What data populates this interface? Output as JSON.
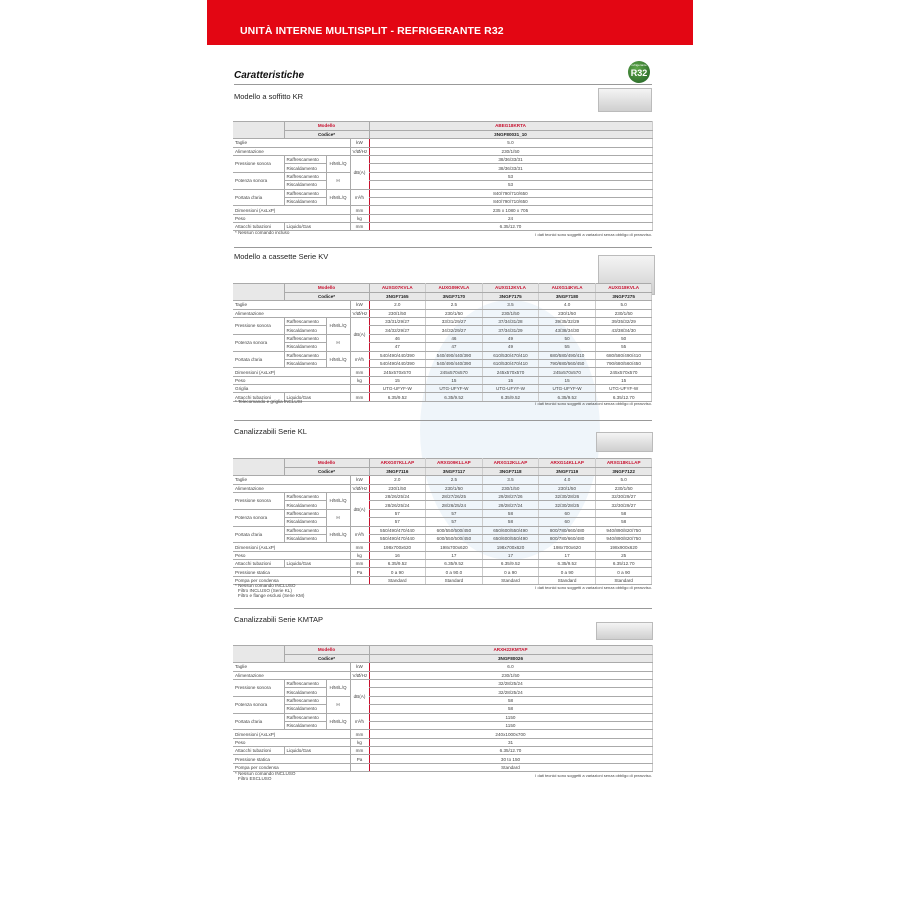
{
  "header": {
    "title": "UNITÀ INTERNE MULTISPLIT - REFRIGERANTE R32"
  },
  "heading": "Caratteristiche",
  "badge": {
    "small": "refrigerante",
    "label": "R32",
    "color": "#2e7d32"
  },
  "disclaimer": "I dati tecnici sono soggetti a variazioni senza obbligo di preavviso.",
  "labels": {
    "modello": "Modello",
    "codice": "Codice*"
  },
  "sections": [
    {
      "title": "Modello a soffitto KR",
      "models": [
        "ABEG18KRTA"
      ],
      "codes": [
        "3NGF80031_10"
      ],
      "rows": [
        {
          "label": "Taglie",
          "unit": "kW",
          "values": [
            "5.0"
          ]
        },
        {
          "label": "Alimentazione",
          "unit": "V/Ø/Hz",
          "values": [
            "230/1/50"
          ]
        },
        {
          "label": "Pressione sonora",
          "mode": "H/M/L/Q",
          "unit": "dB(A)",
          "sub": [
            {
              "label": "Raffrescamento",
              "values": [
                "38/36/33/31"
              ]
            },
            {
              "label": "Riscaldamento",
              "values": [
                "38/36/33/31"
              ]
            }
          ]
        },
        {
          "label": "Potenza sonora",
          "mode": "H",
          "unit": "",
          "sub": [
            {
              "label": "Raffrescamento",
              "values": [
                "53"
              ]
            },
            {
              "label": "Riscaldamento",
              "values": [
                "53"
              ]
            }
          ]
        },
        {
          "label": "Portata d'aria",
          "mode": "H/M/L/Q",
          "unit": "m³/h",
          "sub": [
            {
              "label": "Raffrescamento",
              "values": [
                "840/790/710/650"
              ]
            },
            {
              "label": "Riscaldamento",
              "values": [
                "840/790/710/650"
              ]
            }
          ]
        },
        {
          "label": "Dimensioni (AxLxP)",
          "unit": "mm",
          "values": [
            "235 x 1080 x 705"
          ]
        },
        {
          "label": "Peso",
          "unit": "kg",
          "values": [
            "24"
          ]
        },
        {
          "label": "Attacchi tubazioni",
          "subtype": "Liquido/Gas",
          "unit": "mm",
          "values": [
            "6.35/12.70"
          ]
        }
      ],
      "notes": [
        "* Nessun comando incluso"
      ]
    },
    {
      "title": "Modello a cassette Serie KV",
      "models": [
        "AUXG07KVLA",
        "AUXG09KVLA",
        "AUXG12KVLA",
        "AUXG14KVLA",
        "AUXG18KVLA"
      ],
      "codes": [
        "3NGF7165",
        "3NGF7170",
        "3NGF7175",
        "3NGF7180",
        "3NGF7275"
      ],
      "rows": [
        {
          "label": "Taglie",
          "unit": "kW",
          "values": [
            "2.0",
            "2.5",
            "3.5",
            "4.0",
            "5.0"
          ]
        },
        {
          "label": "Alimentazione",
          "unit": "V/Ø/Hz",
          "values": [
            "230/1/50",
            "230/1/50",
            "230/1/50",
            "230/1/50",
            "230/1/50"
          ]
        },
        {
          "label": "Pressione sonora",
          "mode": "H/M/L/Q",
          "unit": "dB(A)",
          "sub": [
            {
              "label": "Raffrescamento",
              "values": [
                "33/31/29/27",
                "33/31/29/27",
                "37/34/31/28",
                "39/35/32/29",
                "39/35/32/29"
              ]
            },
            {
              "label": "Riscaldamento",
              "values": [
                "34/32/29/27",
                "34/32/29/27",
                "37/34/31/29",
                "43/38/34/30",
                "43/38/34/30"
              ]
            }
          ]
        },
        {
          "label": "Potenza sonora",
          "mode": "H",
          "unit": "",
          "sub": [
            {
              "label": "Raffrescamento",
              "values": [
                "46",
                "46",
                "49",
                "50",
                "50"
              ]
            },
            {
              "label": "Riscaldamento",
              "values": [
                "47",
                "47",
                "49",
                "55",
                "55"
              ]
            }
          ]
        },
        {
          "label": "Portata d'aria",
          "mode": "H/M/L/Q",
          "unit": "m³/h",
          "sub": [
            {
              "label": "Raffrescamento",
              "values": [
                "540/490/440/390",
                "540/490/440/390",
                "610/530/470/410",
                "680/580/490/410",
                "680/580/490/410"
              ]
            },
            {
              "label": "Riscaldamento",
              "values": [
                "540/490/440/390",
                "540/490/440/390",
                "610/530/470/410",
                "790/680/560/450",
                "790/680/560/450"
              ]
            }
          ]
        },
        {
          "label": "Dimensioni (AxLxP)",
          "unit": "mm",
          "values": [
            "245x570x570",
            "245x570x570",
            "245x570x570",
            "245x570x570",
            "245x570x570"
          ]
        },
        {
          "label": "Peso",
          "unit": "kg",
          "values": [
            "15",
            "15",
            "15",
            "15",
            "15"
          ]
        },
        {
          "label": "Griglia",
          "unit": "",
          "values": [
            "UTG-UFYF-W",
            "UTG-UFYF-W",
            "UTG-UFYF-W",
            "UTG-UFYF-W",
            "UTG-UFYF-W"
          ]
        },
        {
          "label": "Attacchi tubazioni",
          "subtype": "Liquido/Gas",
          "unit": "mm",
          "values": [
            "6.35/9.52",
            "6.35/9.52",
            "6.35/9.52",
            "6.35/9.52",
            "6.35/12.70"
          ]
        }
      ],
      "notes": [
        "* Telecomando e griglia INCLUSI"
      ]
    },
    {
      "title": "Canalizzabili Serie KL",
      "models": [
        "ARXG07KLLAP",
        "ARXG09KLLAP",
        "ARXG12KLLAP",
        "ARXG14KLLAP",
        "ARXG18KLLAP"
      ],
      "codes": [
        "3NGF7116",
        "3NGF7117",
        "3NGF7118",
        "3NGF7119",
        "3NGF7122"
      ],
      "rows": [
        {
          "label": "Taglie",
          "unit": "kW",
          "values": [
            "2.0",
            "2.5",
            "3.5",
            "4.0",
            "5.0"
          ]
        },
        {
          "label": "Alimentazione",
          "unit": "V/Ø/Hz",
          "values": [
            "230/1/50",
            "230/1/50",
            "230/1/50",
            "230/1/50",
            "230/1/50"
          ]
        },
        {
          "label": "Pressione sonora",
          "mode": "H/M/L/Q",
          "unit": "dB(A)",
          "sub": [
            {
              "label": "Raffrescamento",
              "values": [
                "28/26/25/24",
                "28/27/26/25",
                "29/28/27/26",
                "32/30/28/26",
                "32/30/29/27"
              ]
            },
            {
              "label": "Riscaldamento",
              "values": [
                "28/26/25/24",
                "28/26/25/24",
                "29/28/27/24",
                "32/30/28/25",
                "32/30/29/27"
              ]
            }
          ]
        },
        {
          "label": "Potenza sonora",
          "mode": "H",
          "unit": "",
          "sub": [
            {
              "label": "Raffrescamento",
              "values": [
                "57",
                "57",
                "58",
                "60",
                "58"
              ]
            },
            {
              "label": "Riscaldamento",
              "values": [
                "57",
                "57",
                "58",
                "60",
                "58"
              ]
            }
          ]
        },
        {
          "label": "Portata d'aria",
          "mode": "H/M/L/Q",
          "unit": "m³/h",
          "sub": [
            {
              "label": "Raffrescamento",
              "values": [
                "550/490/470/440",
                "600/550/500/450",
                "650/600/550/490",
                "800/780/660/480",
                "940/890/820/750"
              ]
            },
            {
              "label": "Riscaldamento",
              "values": [
                "550/490/470/440",
                "600/550/500/450",
                "650/600/550/490",
                "800/780/660/480",
                "940/890/820/750"
              ]
            }
          ]
        },
        {
          "label": "Dimensioni (AxLxP)",
          "unit": "mm",
          "values": [
            "198x700x620",
            "198x700x620",
            "198x700x620",
            "198x700x620",
            "198x900x620"
          ]
        },
        {
          "label": "Peso",
          "unit": "kg",
          "values": [
            "16",
            "17",
            "17",
            "17",
            "25"
          ]
        },
        {
          "label": "Attacchi tubazioni",
          "subtype": "Liquido/Gas",
          "unit": "mm",
          "values": [
            "6.35/9.52",
            "6.35/9.52",
            "6.35/9.52",
            "6.35/9.52",
            "6.35/12.70"
          ]
        },
        {
          "label": "Pressione statica",
          "unit": "Pa",
          "values": [
            "0 a 90",
            "0 a 90.0",
            "0 a 90",
            "0 a 90",
            "0 a 90"
          ]
        },
        {
          "label": "Pompa per condensa",
          "unit": "",
          "values": [
            "Standard",
            "Standard",
            "Standard",
            "Standard",
            "Standard"
          ]
        }
      ],
      "notes": [
        "* Nessun comando INCLUSO",
        "Filtro INCLUSO (Serie KL)",
        "Filtro e flange esclusi (Serie KM)"
      ]
    },
    {
      "title": "Canalizzabili Serie KMTAP",
      "models": [
        "ARXH22KMTAP"
      ],
      "codes": [
        "3NGF80026"
      ],
      "rows": [
        {
          "label": "Taglie",
          "unit": "kW",
          "values": [
            "6.0"
          ]
        },
        {
          "label": "Alimentazione",
          "unit": "V/Ø/Hz",
          "values": [
            "230/1/50"
          ]
        },
        {
          "label": "Pressione sonora",
          "mode": "H/M/L/Q",
          "unit": "dB(A)",
          "sub": [
            {
              "label": "Raffrescamento",
              "values": [
                "32/28/25/24"
              ]
            },
            {
              "label": "Riscaldamento",
              "values": [
                "32/28/25/24"
              ]
            }
          ]
        },
        {
          "label": "Potenza sonora",
          "mode": "H",
          "unit": "",
          "sub": [
            {
              "label": "Raffrescamento",
              "values": [
                "58"
              ]
            },
            {
              "label": "Riscaldamento",
              "values": [
                "58"
              ]
            }
          ]
        },
        {
          "label": "Portata d'aria",
          "mode": "H/M/L/Q",
          "unit": "m³/h",
          "sub": [
            {
              "label": "Raffrescamento",
              "values": [
                "1150"
              ]
            },
            {
              "label": "Riscaldamento",
              "values": [
                "1150"
              ]
            }
          ]
        },
        {
          "label": "Dimensioni (AxLxP)",
          "unit": "mm",
          "values": [
            "240x1000x700"
          ]
        },
        {
          "label": "Peso",
          "unit": "kg",
          "values": [
            "31"
          ]
        },
        {
          "label": "Attacchi tubazioni",
          "subtype": "Liquido/Gas",
          "unit": "mm",
          "values": [
            "6.35/12.70"
          ]
        },
        {
          "label": "Pressione statica",
          "unit": "Pa",
          "values": [
            "30 to 150"
          ]
        },
        {
          "label": "Pompa per condensa",
          "unit": "",
          "values": [
            "Standard"
          ]
        }
      ],
      "notes": [
        "* Nessun comando INCLUSO",
        "Filtro ESCLUSO"
      ]
    }
  ]
}
